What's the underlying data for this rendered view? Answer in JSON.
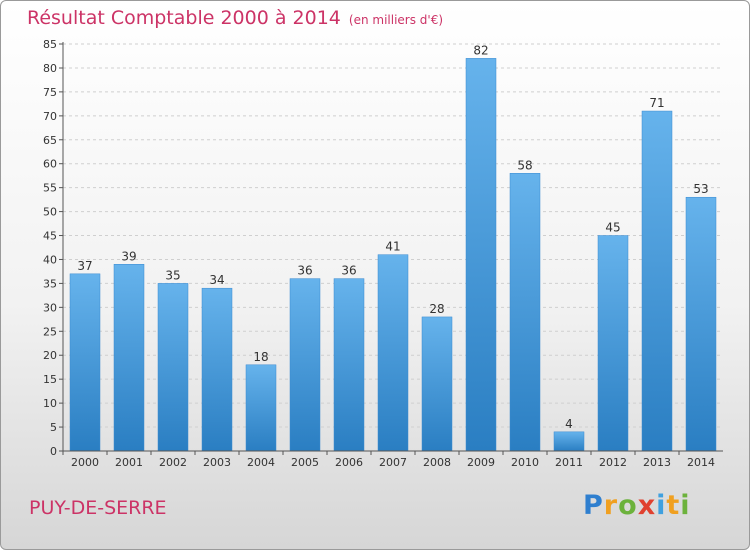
{
  "header": {
    "title": "Résultat Comptable 2000 à 2014",
    "unit": "(en milliers d'€)"
  },
  "commune": "PUY-DE-SERRE",
  "brand": {
    "letters": [
      "P",
      "r",
      "o",
      "x",
      "i",
      "t",
      "i"
    ],
    "colors": [
      "#2f7fcf",
      "#f0a020",
      "#6cb23c",
      "#e0412f",
      "#3fa0df",
      "#f0a020",
      "#6cb23c"
    ]
  },
  "colors": {
    "accent": "#cc3366",
    "bar_light": "#66b3ec",
    "bar_dark": "#2a7ec2",
    "grid": "#cfcfcf",
    "axis": "#555555"
  },
  "chart_data": {
    "type": "bar",
    "categories": [
      "2000",
      "2001",
      "2002",
      "2003",
      "2004",
      "2005",
      "2006",
      "2007",
      "2008",
      "2009",
      "2010",
      "2011",
      "2012",
      "2013",
      "2014"
    ],
    "values": [
      37,
      39,
      35,
      34,
      18,
      36,
      36,
      41,
      28,
      82,
      58,
      4,
      45,
      71,
      53
    ],
    "yticks": [
      0,
      5,
      10,
      15,
      20,
      25,
      30,
      35,
      40,
      45,
      50,
      55,
      60,
      65,
      70,
      75,
      80,
      85
    ],
    "ylim": [
      0,
      85
    ],
    "grid": true,
    "xlabel": "",
    "ylabel": ""
  }
}
